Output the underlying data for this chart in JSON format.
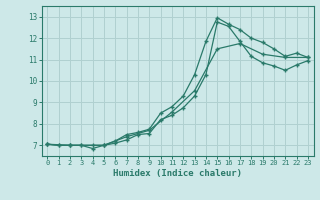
{
  "background_color": "#cde8e8",
  "grid_color": "#b0d0d0",
  "line_color": "#2a7a6a",
  "xlabel": "Humidex (Indice chaleur)",
  "xlim": [
    -0.5,
    23.5
  ],
  "ylim": [
    6.5,
    13.5
  ],
  "yticks": [
    7,
    8,
    9,
    10,
    11,
    12,
    13
  ],
  "xticks": [
    0,
    1,
    2,
    3,
    4,
    5,
    6,
    7,
    8,
    9,
    10,
    11,
    12,
    13,
    14,
    15,
    16,
    17,
    18,
    19,
    20,
    21,
    22,
    23
  ],
  "line1_x": [
    0,
    1,
    2,
    3,
    4,
    5,
    6,
    7,
    8,
    9,
    10,
    11,
    12,
    13,
    14,
    15,
    16,
    17,
    18,
    19,
    20,
    21,
    22,
    23
  ],
  "line1_y": [
    7.05,
    7.0,
    7.0,
    7.0,
    7.0,
    7.0,
    7.2,
    7.5,
    7.6,
    7.75,
    8.5,
    8.8,
    9.3,
    10.3,
    11.85,
    12.95,
    12.65,
    12.4,
    12.0,
    11.8,
    11.5,
    11.15,
    11.3,
    11.1
  ],
  "line2_x": [
    0,
    1,
    2,
    3,
    4,
    5,
    6,
    7,
    8,
    9,
    10,
    11,
    12,
    13,
    14,
    15,
    16,
    17,
    18,
    19,
    20,
    21,
    22,
    23
  ],
  "line2_y": [
    7.05,
    7.0,
    7.0,
    7.0,
    6.85,
    7.0,
    7.1,
    7.25,
    7.5,
    7.55,
    8.2,
    8.4,
    8.75,
    9.3,
    10.3,
    12.75,
    12.55,
    11.85,
    11.15,
    10.85,
    10.7,
    10.5,
    10.75,
    10.95
  ],
  "line3_x": [
    0,
    2,
    5,
    7,
    9,
    11,
    13,
    15,
    17,
    19,
    21,
    23
  ],
  "line3_y": [
    7.05,
    7.0,
    7.0,
    7.4,
    7.7,
    8.55,
    9.55,
    11.5,
    11.75,
    11.25,
    11.1,
    11.1
  ]
}
